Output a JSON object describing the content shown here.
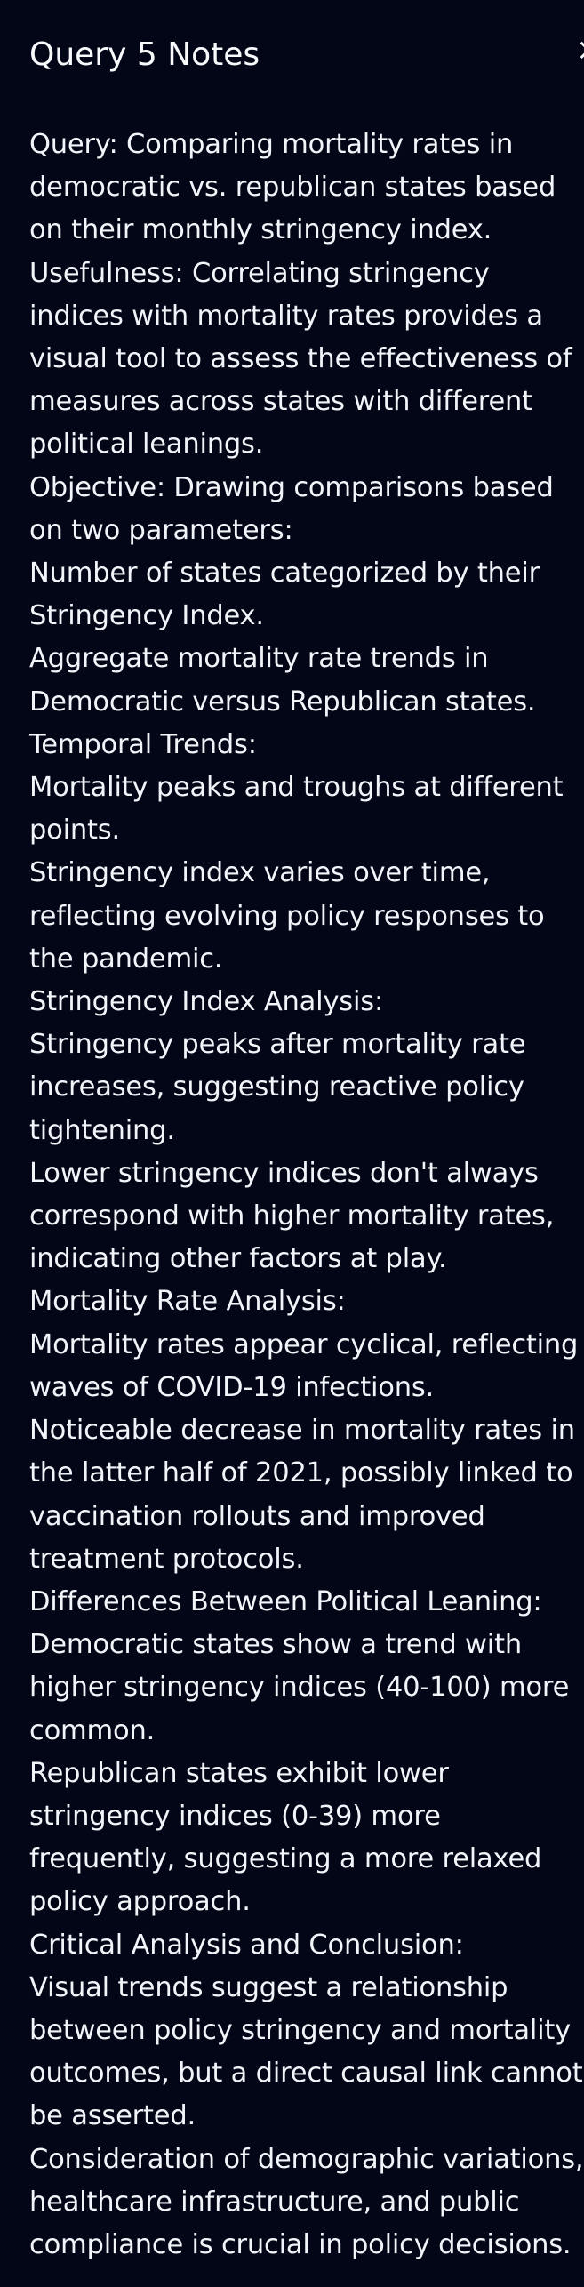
{
  "panel": {
    "title": "Query 5 Notes",
    "close_label": "×"
  },
  "notes": [
    "Query: Comparing mortality rates in democratic vs. republican states based on their monthly stringency index.",
    "Usefulness: Correlating stringency indices with mortality rates provides a visual tool to assess the effectiveness of measures across states with different political leanings.",
    "Objective: Drawing comparisons based on two parameters:",
    "Number of states categorized by their Stringency Index.",
    "Aggregate mortality rate trends in Democratic versus Republican states.",
    "Temporal Trends:",
    "Mortality peaks and troughs at different points.",
    "Stringency index varies over time, reflecting evolving policy responses to the pandemic.",
    "Stringency Index Analysis:",
    "Stringency peaks after mortality rate increases, suggesting reactive policy tightening.",
    "Lower stringency indices don't always correspond with higher mortality rates, indicating other factors at play.",
    "Mortality Rate Analysis:",
    "Mortality rates appear cyclical, reflecting waves of COVID-19 infections.",
    "Noticeable decrease in mortality rates in the latter half of 2021, possibly linked to vaccination rollouts and improved treatment protocols.",
    "Differences Between Political Leaning:",
    "Democratic states show a trend with higher stringency indices (40-100) more common.",
    "Republican states exhibit lower stringency indices (0-39) more frequently, suggesting a more relaxed policy approach.",
    "Critical Analysis and Conclusion:",
    "Visual trends suggest a relationship between policy stringency and mortality outcomes, but a direct causal link cannot be asserted.",
    "Consideration of demographic variations, healthcare infrastructure, and public compliance is crucial in policy decisions."
  ]
}
